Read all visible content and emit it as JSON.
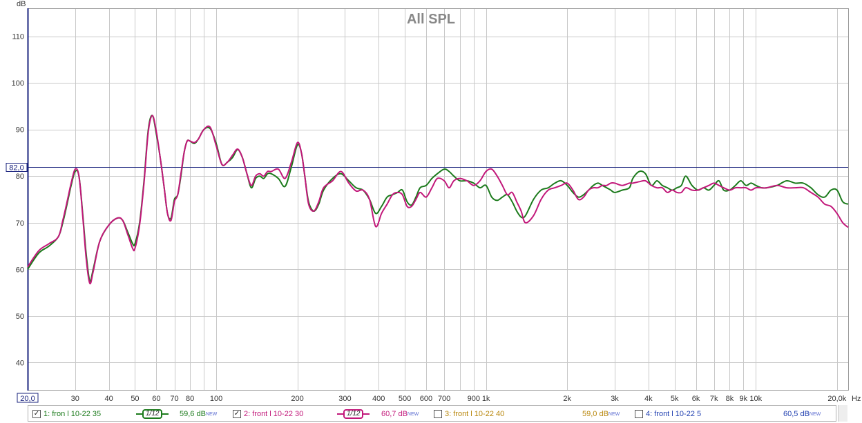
{
  "chart_data": {
    "type": "line",
    "title": "All SPL",
    "ylabel": "dB",
    "xlabel": "Hz",
    "x_scale": "log",
    "xlim": [
      20,
      22000
    ],
    "ylim": [
      34,
      116
    ],
    "grid": true,
    "y_ticks": [
      40,
      50,
      60,
      70,
      80,
      90,
      100,
      110
    ],
    "x_ticks": [
      {
        "v": 30,
        "label": "30"
      },
      {
        "v": 40,
        "label": "40"
      },
      {
        "v": 50,
        "label": "50"
      },
      {
        "v": 60,
        "label": "60"
      },
      {
        "v": 70,
        "label": "70"
      },
      {
        "v": 80,
        "label": "80"
      },
      {
        "v": 100,
        "label": "100"
      },
      {
        "v": 200,
        "label": "200"
      },
      {
        "v": 300,
        "label": "300"
      },
      {
        "v": 400,
        "label": "400"
      },
      {
        "v": 500,
        "label": "500"
      },
      {
        "v": 600,
        "label": "600"
      },
      {
        "v": 700,
        "label": "700"
      },
      {
        "v": 900,
        "label": "900"
      },
      {
        "v": 1000,
        "label": "1k"
      },
      {
        "v": 2000,
        "label": "2k"
      },
      {
        "v": 3000,
        "label": "3k"
      },
      {
        "v": 4000,
        "label": "4k"
      },
      {
        "v": 5000,
        "label": "5k"
      },
      {
        "v": 6000,
        "label": "6k"
      },
      {
        "v": 7000,
        "label": "7k"
      },
      {
        "v": 8000,
        "label": "8k"
      },
      {
        "v": 9000,
        "label": "9k"
      },
      {
        "v": 10000,
        "label": "10k"
      },
      {
        "v": 20000,
        "label": "20,0k"
      }
    ],
    "grid_x": [
      20,
      30,
      40,
      50,
      60,
      70,
      80,
      90,
      100,
      200,
      300,
      400,
      500,
      600,
      700,
      800,
      900,
      1000,
      2000,
      3000,
      4000,
      5000,
      6000,
      7000,
      8000,
      9000,
      10000,
      20000
    ],
    "x_min_label": "20,0",
    "reference_line": {
      "value": 82.0,
      "label": "82,0",
      "color": "#1a237e"
    },
    "series": [
      {
        "name": "1: fron l 10-22 35",
        "color": "#1b7a1b",
        "x": [
          20,
          22,
          24,
          26,
          27,
          28,
          29,
          30,
          31,
          32,
          33,
          34,
          35,
          37,
          40,
          43,
          45,
          47,
          49,
          50,
          52,
          54,
          56,
          58,
          60,
          62,
          64,
          66,
          68,
          70,
          72,
          74,
          76,
          78,
          80,
          83,
          86,
          90,
          95,
          100,
          105,
          110,
          115,
          120,
          125,
          130,
          135,
          140,
          145,
          150,
          155,
          160,
          170,
          180,
          190,
          200,
          207,
          213,
          220,
          230,
          240,
          250,
          270,
          290,
          310,
          330,
          350,
          370,
          390,
          410,
          430,
          450,
          470,
          490,
          510,
          530,
          550,
          570,
          600,
          630,
          660,
          700,
          730,
          760,
          800,
          850,
          900,
          950,
          1000,
          1050,
          1100,
          1150,
          1200,
          1250,
          1300,
          1350,
          1400,
          1500,
          1600,
          1700,
          1800,
          1900,
          2000,
          2100,
          2200,
          2300,
          2400,
          2500,
          2600,
          2700,
          2800,
          2900,
          3000,
          3200,
          3400,
          3500,
          3700,
          3900,
          4100,
          4300,
          4500,
          4700,
          4900,
          5100,
          5300,
          5500,
          5800,
          6100,
          6400,
          6700,
          7000,
          7300,
          7600,
          8000,
          8400,
          8800,
          9200,
          9600,
          10000,
          10500,
          11000,
          12000,
          13000,
          14000,
          15000,
          16000,
          17000,
          18000,
          19000,
          20000,
          21000,
          22000
        ],
        "y": [
          60,
          63.5,
          65,
          67,
          70,
          74,
          78,
          81,
          80,
          72,
          63,
          57.5,
          60,
          66,
          69.5,
          71,
          70.5,
          68,
          65.5,
          65.5,
          70,
          79,
          90,
          93,
          89,
          84,
          78,
          72,
          71,
          75,
          76,
          80,
          85,
          87.5,
          87.5,
          87,
          88,
          90,
          90.2,
          87,
          82.5,
          83,
          84,
          85.7,
          84,
          80.5,
          77.5,
          79.5,
          80,
          79.5,
          80.5,
          80.5,
          79.5,
          77.8,
          82,
          86.7,
          85,
          80,
          74.5,
          72.5,
          74,
          77,
          79.5,
          80.5,
          79,
          77.5,
          77,
          75,
          72,
          73.5,
          75.5,
          76,
          76.5,
          77,
          74.5,
          73.8,
          75.5,
          77.5,
          78,
          79.5,
          80.5,
          81.5,
          81,
          80,
          79,
          79,
          78.5,
          77.5,
          78,
          75.5,
          74.8,
          75.5,
          76,
          74.5,
          72.5,
          71.2,
          71.5,
          75,
          77,
          77.5,
          78.5,
          79,
          78,
          76.5,
          75.5,
          76,
          77,
          78,
          78.5,
          78,
          77.5,
          77,
          76.5,
          77,
          77.5,
          79.5,
          81,
          80.5,
          78,
          79,
          78,
          77.5,
          77,
          77.5,
          78,
          80,
          78,
          77,
          77.5,
          77,
          78,
          79,
          77,
          77,
          78,
          79,
          78,
          78.5,
          78,
          77.5,
          77.5,
          78,
          79,
          78.5,
          78.5,
          77.5,
          76,
          75.5,
          77,
          77,
          74.5,
          74
        ]
      },
      {
        "name": "2: front l 10-22 30",
        "color": "#c2187a",
        "x": [
          20,
          22,
          24,
          26,
          27,
          28,
          29,
          30,
          31,
          32,
          33,
          34,
          35,
          37,
          40,
          43,
          45,
          47,
          49,
          50,
          52,
          54,
          56,
          58,
          60,
          62,
          64,
          66,
          68,
          70,
          72,
          74,
          76,
          78,
          80,
          83,
          86,
          90,
          95,
          100,
          105,
          110,
          115,
          120,
          125,
          130,
          135,
          140,
          145,
          150,
          155,
          160,
          170,
          180,
          190,
          200,
          207,
          213,
          220,
          230,
          240,
          250,
          270,
          290,
          310,
          330,
          350,
          370,
          390,
          410,
          430,
          450,
          470,
          490,
          510,
          530,
          550,
          570,
          600,
          630,
          660,
          700,
          730,
          760,
          800,
          850,
          900,
          950,
          1000,
          1050,
          1100,
          1150,
          1200,
          1250,
          1300,
          1350,
          1400,
          1500,
          1600,
          1700,
          1800,
          1900,
          2000,
          2100,
          2200,
          2300,
          2400,
          2500,
          2600,
          2700,
          2800,
          2900,
          3000,
          3200,
          3400,
          3500,
          3700,
          3900,
          4100,
          4300,
          4500,
          4700,
          4900,
          5100,
          5300,
          5500,
          5800,
          6100,
          6400,
          6700,
          7000,
          7300,
          7600,
          8000,
          8400,
          8800,
          9200,
          9600,
          10000,
          10500,
          11000,
          12000,
          13000,
          14000,
          15000,
          16000,
          17000,
          18000,
          19000,
          20000,
          21000,
          22000
        ],
        "y": [
          60.5,
          64,
          65.5,
          67,
          70.5,
          74.5,
          78.5,
          81.5,
          80,
          71.5,
          62,
          57,
          59.5,
          66,
          69.5,
          71,
          70.5,
          67.5,
          64.5,
          64.5,
          69.5,
          78.5,
          89.5,
          93,
          89.5,
          84,
          78,
          72,
          70.5,
          74.5,
          76,
          80.5,
          85,
          87.5,
          87.5,
          87.2,
          88,
          90,
          90.5,
          86.5,
          82.5,
          83,
          84.5,
          85.8,
          84,
          80.5,
          78,
          80,
          80.5,
          80,
          81,
          81,
          81.5,
          79.5,
          83,
          87.2,
          85,
          80,
          74,
          72.5,
          74.5,
          77.5,
          79,
          81,
          78.5,
          76.8,
          77,
          75,
          69.2,
          72,
          74,
          76,
          76.5,
          76,
          73.5,
          73.5,
          75,
          76.5,
          75.5,
          77.5,
          79.5,
          79,
          77.5,
          79,
          79.5,
          79,
          78,
          79,
          81,
          81.5,
          80,
          78,
          76,
          76.5,
          74.5,
          72.5,
          70,
          71.5,
          75,
          77,
          77.5,
          78,
          78.5,
          77,
          75,
          75.5,
          77,
          77.5,
          77.5,
          78,
          78,
          78.5,
          78.5,
          78,
          78.5,
          78.5,
          78.8,
          79,
          78,
          77.5,
          77.5,
          76.5,
          77,
          76.5,
          76.5,
          77.5,
          77,
          77,
          77.5,
          78,
          78.5,
          78,
          77.5,
          77,
          77.5,
          77.5,
          77.5,
          77,
          77.5,
          77.5,
          77.5,
          78,
          77.5,
          77.5,
          77.5,
          76.5,
          75.5,
          74,
          73.5,
          72,
          70,
          69
        ]
      }
    ]
  },
  "legend": {
    "items": [
      {
        "checked": true,
        "check": "✓",
        "name": "1: fron l 10-22 35",
        "color": "#1b7a1b",
        "smoothing": "1/12",
        "level": "59,6 dB",
        "tag": "NEW"
      },
      {
        "checked": true,
        "check": "✓",
        "name": "2: front l 10-22 30",
        "color": "#c2187a",
        "smoothing": "1/12",
        "level": "60,7 dB",
        "tag": "NEW"
      },
      {
        "checked": false,
        "check": "",
        "name": "3: front l 10-22 40",
        "color": "#b8860b",
        "level": "59,0 dB",
        "tag": "NEW"
      },
      {
        "checked": false,
        "check": "",
        "name": "4: front l 10-22 5",
        "color": "#1f3fb0",
        "level": "60,5 dB",
        "tag": "NEW"
      }
    ]
  }
}
